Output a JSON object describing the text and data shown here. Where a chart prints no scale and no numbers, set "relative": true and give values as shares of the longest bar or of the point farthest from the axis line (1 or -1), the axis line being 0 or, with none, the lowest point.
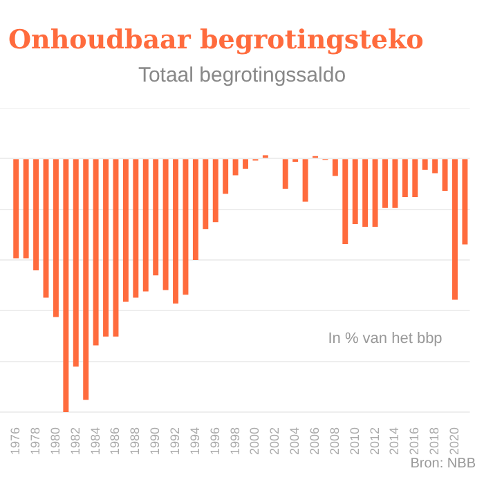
{
  "chart_data": {
    "type": "bar",
    "title": "Onhoudbaar begrotingsteko",
    "subtitle": "Totaal begrotingssaldo",
    "relative": true,
    "grid": "y",
    "color": "#ff6b3d",
    "categories": [
      "1976",
      null,
      "1978",
      null,
      "1980",
      null,
      "1982",
      null,
      "1984",
      null,
      "1986",
      null,
      "1988",
      null,
      "1990",
      null,
      "1992",
      null,
      "1994",
      null,
      "1996",
      null,
      "1998",
      null,
      "2000",
      null,
      "2002",
      null,
      "2004",
      null,
      "2006",
      null,
      "2008",
      null,
      "2010",
      null,
      "2012",
      null,
      "2014",
      null,
      "2016",
      null,
      "2018",
      null,
      "2020",
      null
    ],
    "values": [
      -0.393,
      -0.393,
      -0.441,
      -0.549,
      -0.625,
      -1,
      -0.821,
      -0.952,
      -0.737,
      -0.702,
      -0.702,
      -0.565,
      -0.549,
      -0.524,
      -0.461,
      -0.519,
      -0.572,
      -0.537,
      -0.4,
      -0.278,
      -0.251,
      -0.139,
      -0.066,
      -0.04,
      -0.008,
      0.013,
      0,
      -0.119,
      -0.013,
      -0.17,
      0.01,
      -0.005,
      -0.069,
      -0.337,
      -0.258,
      -0.269,
      -0.269,
      -0.195,
      -0.195,
      -0.152,
      -0.152,
      -0.045,
      -0.058,
      -0.127,
      -0.557,
      -0.339
    ],
    "annotations": [
      "In % van het bbp",
      "Bron: NBB"
    ]
  }
}
